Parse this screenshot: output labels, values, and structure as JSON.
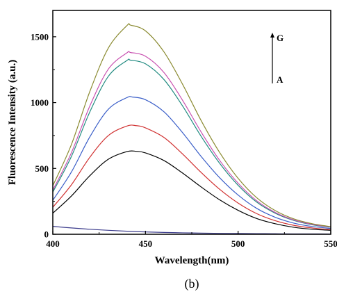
{
  "chart_data": {
    "type": "line",
    "title": "",
    "xlabel": "Wavelength(nm)",
    "ylabel": "Fluorescence Intensity (a.u.)",
    "xlim": [
      400,
      550
    ],
    "ylim": [
      0,
      1700
    ],
    "xticks": [
      400,
      450,
      500,
      550
    ],
    "xtick_labels": [
      "400",
      "450",
      "500",
      "550"
    ],
    "yticks": [
      0,
      500,
      1000,
      1500
    ],
    "ytick_labels": [
      "0",
      "500",
      "1000",
      "1500"
    ],
    "grid": false,
    "legend": "none",
    "annotation": {
      "top_label": "G",
      "bottom_label": "A"
    },
    "caption": "(b)",
    "series": [
      {
        "color": "#3c3c8c",
        "x": [
          400,
          410,
          420,
          430,
          440,
          450,
          460,
          470,
          480,
          490,
          500,
          510,
          520,
          530,
          540,
          550
        ],
        "values": [
          60,
          48,
          38,
          30,
          23,
          18,
          14,
          11,
          9,
          7,
          6,
          5,
          4,
          3,
          3,
          2
        ]
      },
      {
        "color": "#000000",
        "x": [
          400,
          410,
          420,
          430,
          440,
          445,
          450,
          460,
          470,
          480,
          490,
          500,
          510,
          520,
          530,
          540,
          550
        ],
        "values": [
          160,
          290,
          445,
          570,
          628,
          630,
          618,
          560,
          465,
          360,
          262,
          182,
          120,
          80,
          53,
          38,
          30
        ]
      },
      {
        "color": "#d03030",
        "x": [
          400,
          410,
          420,
          430,
          440,
          445,
          450,
          460,
          470,
          480,
          490,
          500,
          510,
          520,
          530,
          540,
          550
        ],
        "values": [
          205,
          375,
          585,
          750,
          822,
          825,
          808,
          735,
          610,
          470,
          342,
          237,
          157,
          103,
          68,
          48,
          36
        ]
      },
      {
        "color": "#3a5ec8",
        "x": [
          400,
          410,
          420,
          430,
          440,
          443,
          450,
          460,
          470,
          480,
          490,
          500,
          510,
          520,
          530,
          540,
          550
        ],
        "values": [
          258,
          472,
          740,
          950,
          1038,
          1042,
          1022,
          930,
          772,
          592,
          430,
          298,
          197,
          129,
          85,
          59,
          44
        ]
      },
      {
        "color": "#208a80",
        "x": [
          400,
          410,
          420,
          430,
          440,
          442,
          450,
          460,
          470,
          480,
          490,
          500,
          510,
          520,
          530,
          540,
          550
        ],
        "values": [
          320,
          590,
          930,
          1200,
          1320,
          1322,
          1295,
          1175,
          975,
          745,
          540,
          372,
          245,
          160,
          105,
          72,
          53
        ]
      },
      {
        "color": "#c850b0",
        "x": [
          400,
          410,
          420,
          430,
          440,
          442,
          450,
          460,
          470,
          480,
          490,
          500,
          510,
          520,
          530,
          540,
          550
        ],
        "values": [
          335,
          618,
          975,
          1255,
          1378,
          1380,
          1352,
          1228,
          1018,
          778,
          562,
          388,
          255,
          166,
          109,
          75,
          55
        ]
      },
      {
        "color": "#8a8a30",
        "x": [
          400,
          410,
          420,
          430,
          440,
          442,
          450,
          460,
          470,
          480,
          490,
          500,
          510,
          520,
          530,
          540,
          550
        ],
        "values": [
          368,
          680,
          1085,
          1415,
          1585,
          1588,
          1545,
          1385,
          1140,
          865,
          622,
          425,
          278,
          180,
          117,
          80,
          58
        ]
      }
    ]
  }
}
